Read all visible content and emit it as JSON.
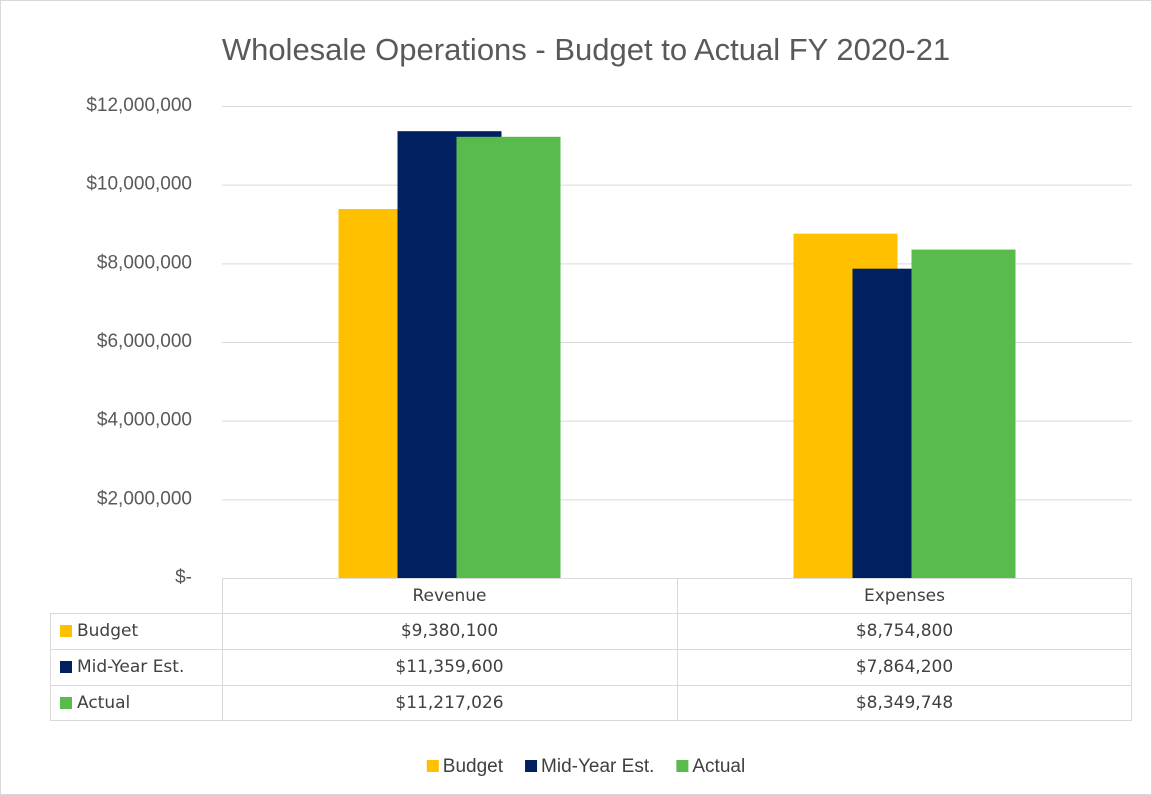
{
  "chart_data": {
    "type": "bar",
    "title": "Wholesale Operations - Budget to Actual FY 2020-21",
    "categories": [
      "Revenue",
      "Expenses"
    ],
    "series": [
      {
        "name": "Budget",
        "color": "#FFC000",
        "values": [
          9380100,
          8754800
        ],
        "value_labels": [
          "$9,380,100",
          "$8,754,800"
        ]
      },
      {
        "name": "Mid-Year Est.",
        "color": "#002060",
        "values": [
          11359600,
          7864200
        ],
        "value_labels": [
          "$11,359,600",
          "$7,864,200"
        ]
      },
      {
        "name": "Actual",
        "color": "#5ABB4D",
        "values": [
          11217026,
          8349748
        ],
        "value_labels": [
          "$11,217,026",
          "$8,349,748"
        ]
      }
    ],
    "ylim": [
      0,
      12000000
    ],
    "yticks": [
      {
        "value": 0,
        "label": "$-"
      },
      {
        "value": 2000000,
        "label": "$2,000,000"
      },
      {
        "value": 4000000,
        "label": "$4,000,000"
      },
      {
        "value": 6000000,
        "label": "$6,000,000"
      },
      {
        "value": 8000000,
        "label": "$8,000,000"
      },
      {
        "value": 10000000,
        "label": "$10,000,000"
      },
      {
        "value": 12000000,
        "label": "$12,000,000"
      }
    ],
    "grid": true,
    "legend": "bottom"
  }
}
